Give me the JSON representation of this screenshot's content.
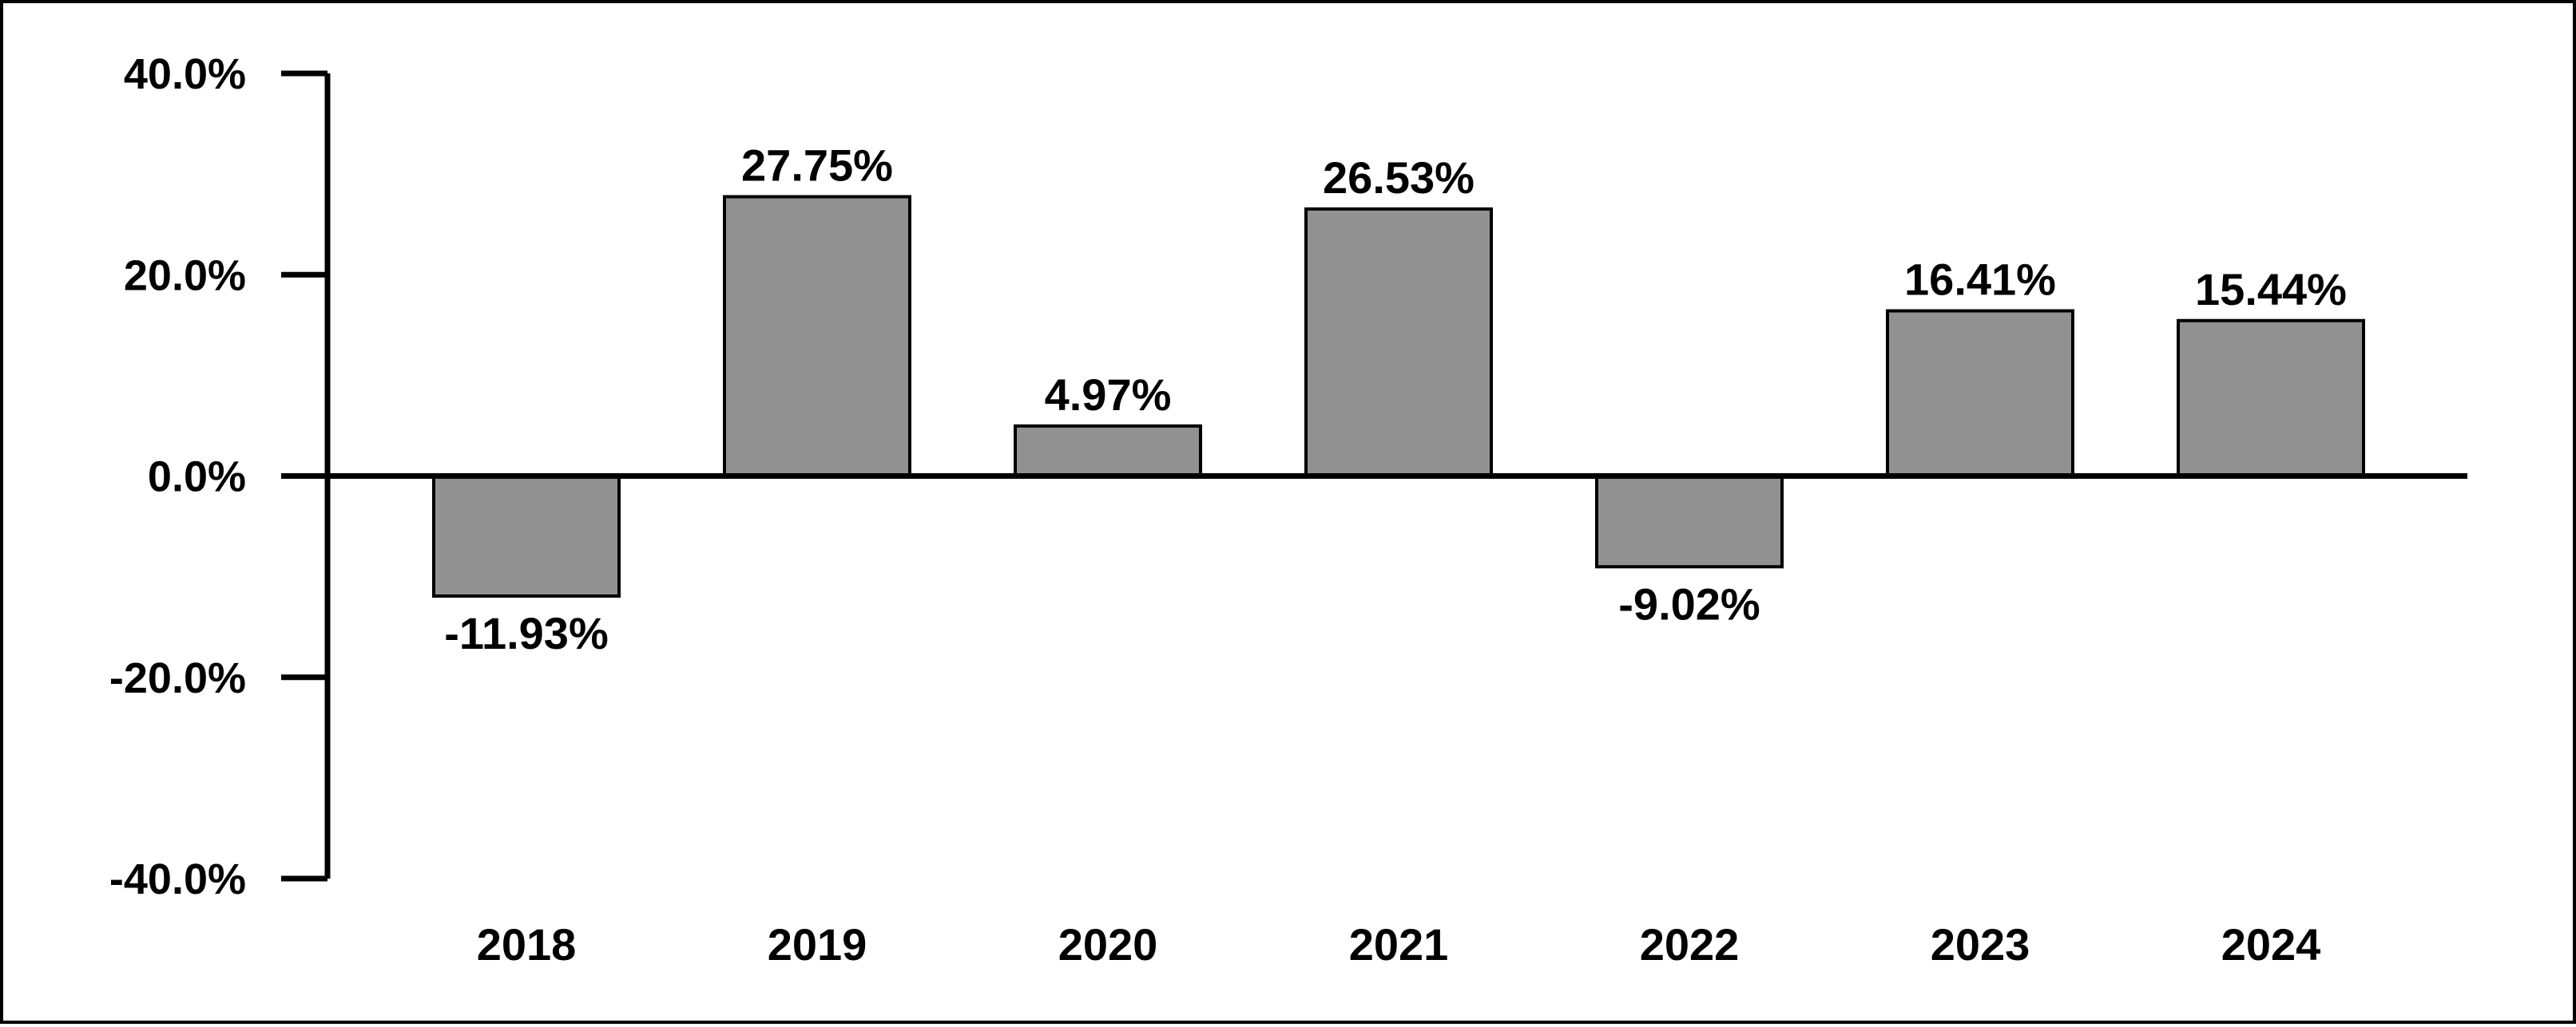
{
  "chart_data": {
    "type": "bar",
    "categories": [
      "2018",
      "2019",
      "2020",
      "2021",
      "2022",
      "2023",
      "2024"
    ],
    "values": [
      -11.93,
      27.75,
      4.97,
      26.53,
      -9.02,
      16.41,
      15.44
    ],
    "data_labels": [
      "-11.93%",
      "27.75%",
      "4.97%",
      "26.53%",
      "-9.02%",
      "16.41%",
      "15.44%"
    ],
    "yticks": [
      {
        "value": 40,
        "label": "40.0%"
      },
      {
        "value": 20,
        "label": "20.0%"
      },
      {
        "value": 0,
        "label": "0.0%"
      },
      {
        "value": -20,
        "label": "-20.0%"
      },
      {
        "value": -40,
        "label": "-40.0%"
      }
    ],
    "ylim": [
      -40,
      40
    ],
    "title": "",
    "xlabel": "",
    "ylabel": "",
    "grid": false,
    "legend": "none",
    "bar_color": "#919191",
    "axis_color": "#000000"
  }
}
